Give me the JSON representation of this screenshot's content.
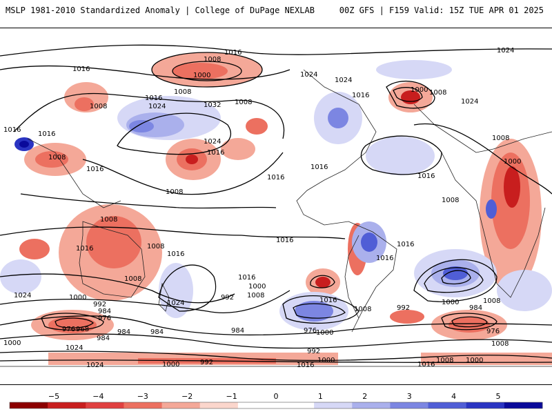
{
  "header": {
    "left_title": "MSLP 1981-2010 Standardized Anomaly | College of DuPage NEXLAB",
    "right_title": "00Z GFS | F159 Valid: 15Z TUE APR 01 2025"
  },
  "colorbar": {
    "min": -5,
    "max": 5,
    "tick_labels": [
      "−5",
      "−4",
      "−3",
      "−2",
      "−1",
      "0",
      "1",
      "2",
      "3",
      "4",
      "5"
    ],
    "colors": [
      "#8b0000",
      "#c81e1e",
      "#e04040",
      "#ec7060",
      "#f4a898",
      "#fbd6cc",
      "#ffffff",
      "#ffffff",
      "#d6d8f6",
      "#aab0ec",
      "#7c86e2",
      "#505ed6",
      "#2a34c2",
      "#0a0a9a"
    ]
  },
  "contour_labels": [
    {
      "text": "1016"
    },
    {
      "text": "1008"
    },
    {
      "text": "1000"
    },
    {
      "text": "1016"
    },
    {
      "text": "1008"
    },
    {
      "text": "1024"
    },
    {
      "text": "1016"
    },
    {
      "text": "1008"
    },
    {
      "text": "1032"
    },
    {
      "text": "1008"
    },
    {
      "text": "1016"
    },
    {
      "text": "1016"
    },
    {
      "text": "1008"
    },
    {
      "text": "1024"
    },
    {
      "text": "1016"
    },
    {
      "text": "1016"
    },
    {
      "text": "1024"
    },
    {
      "text": "1024"
    },
    {
      "text": "1000"
    },
    {
      "text": "1008"
    },
    {
      "text": "1024"
    },
    {
      "text": "1024"
    },
    {
      "text": "1016"
    },
    {
      "text": "1008"
    },
    {
      "text": "1000"
    },
    {
      "text": "1016"
    },
    {
      "text": "1016"
    },
    {
      "text": "1008"
    },
    {
      "text": "1008"
    },
    {
      "text": "1016"
    },
    {
      "text": "1008"
    },
    {
      "text": "1008"
    },
    {
      "text": "1016"
    },
    {
      "text": "1016"
    },
    {
      "text": "1016"
    },
    {
      "text": "1016"
    },
    {
      "text": "1024"
    },
    {
      "text": "1000"
    },
    {
      "text": "1024"
    },
    {
      "text": "992"
    },
    {
      "text": "984"
    },
    {
      "text": "976"
    },
    {
      "text": "976"
    },
    {
      "text": "968"
    },
    {
      "text": "984"
    },
    {
      "text": "1016"
    },
    {
      "text": "1000"
    },
    {
      "text": "984"
    },
    {
      "text": "1008"
    },
    {
      "text": "1016"
    },
    {
      "text": "1000"
    },
    {
      "text": "1008"
    },
    {
      "text": "1016"
    },
    {
      "text": "1000"
    },
    {
      "text": "992"
    },
    {
      "text": "984"
    },
    {
      "text": "976"
    },
    {
      "text": "984"
    },
    {
      "text": "1008"
    },
    {
      "text": "1008"
    },
    {
      "text": "1024"
    },
    {
      "text": "1000"
    },
    {
      "text": "992"
    },
    {
      "text": "984"
    },
    {
      "text": "976"
    },
    {
      "text": "1024"
    },
    {
      "text": "992"
    },
    {
      "text": "1000"
    },
    {
      "text": "992"
    },
    {
      "text": "1016"
    },
    {
      "text": "1008"
    },
    {
      "text": "1000"
    },
    {
      "text": "1016"
    },
    {
      "text": "1000"
    },
    {
      "text": "1008"
    }
  ]
}
